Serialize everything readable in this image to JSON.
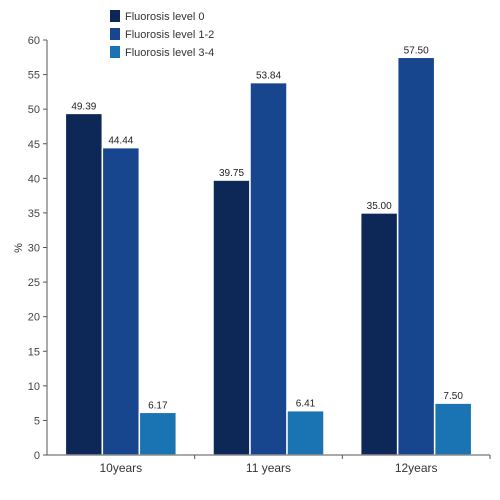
{
  "chart_data": {
    "type": "bar",
    "categories": [
      "10years",
      "11 years",
      "12years"
    ],
    "series": [
      {
        "name": "Fluorosis level 0",
        "values": [
          49.39,
          39.75,
          35.0
        ],
        "labels": [
          "49.39",
          "39.75",
          "35.00"
        ],
        "color": "#0d2857"
      },
      {
        "name": "Fluorosis level 1-2",
        "values": [
          44.44,
          53.84,
          57.5
        ],
        "labels": [
          "44.44",
          "53.84",
          "57.50"
        ],
        "color": "#17468f"
      },
      {
        "name": "Fluorosis level 3-4",
        "values": [
          6.17,
          6.41,
          7.5
        ],
        "labels": [
          "6.17",
          "6.41",
          "7.50"
        ],
        "color": "#1a73b3"
      }
    ],
    "ylabel": "%",
    "xlabel": "",
    "ylim": [
      0,
      60
    ],
    "yticks": [
      0,
      5,
      10,
      15,
      20,
      25,
      30,
      35,
      40,
      45,
      50,
      55,
      60
    ],
    "grid": false,
    "legend": "top-left"
  }
}
